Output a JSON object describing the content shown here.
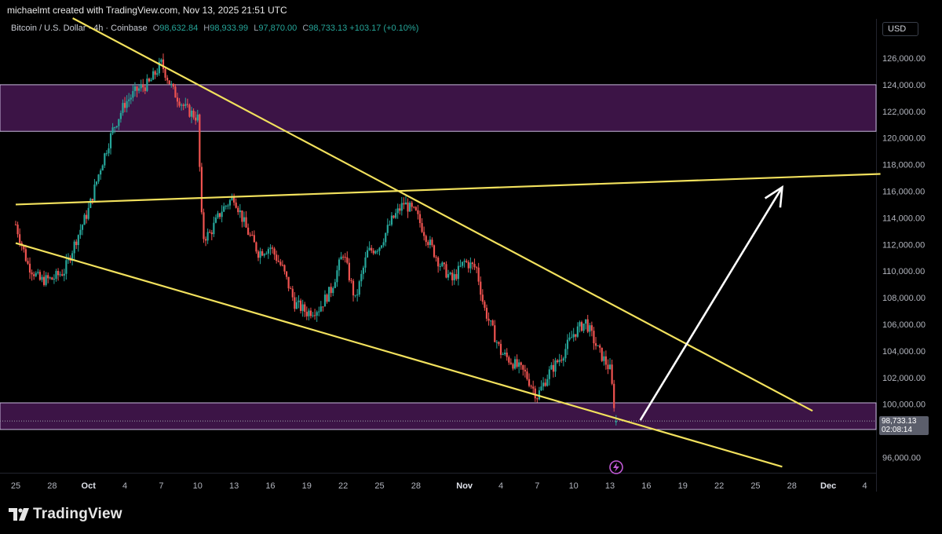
{
  "attribution": "michaelmt created with TradingView.com, Nov 13, 2025 21:51 UTC",
  "legend": {
    "symbol": "Bitcoin / U.S. Dollar · 4h · Coinbase",
    "o_label": "O",
    "o_value": "98,632.84",
    "h_label": "H",
    "h_value": "98,933.99",
    "l_label": "L",
    "l_value": "97,870.00",
    "c_label": "C",
    "c_value": "98,733.13",
    "change": "+103.17 (+0.10%)"
  },
  "currency": "USD",
  "last_price": {
    "value": "98,733.13",
    "countdown": "02:08:14"
  },
  "branding": {
    "logo_text": "TradingView",
    "logo_icon": "tradingview-logo-icon"
  },
  "colors": {
    "background": "#000000",
    "up": "#26a69a",
    "down": "#ef5350",
    "trendline": "#f2e15d",
    "arrow": "#ffffff",
    "zone_fill": "#3c1446",
    "zone_border": "#c8b8dc",
    "label_text": "#b2b5be"
  },
  "chart_data": {
    "type": "candlestick",
    "title": "Bitcoin / U.S. Dollar · 4h · Coinbase",
    "interval": "4h",
    "x_range_days": [
      "2025-09-25",
      "2025-12-05"
    ],
    "ylim": [
      94500,
      127500
    ],
    "y_ticks": [
      {
        "value": 96000,
        "label": "96,000.00"
      },
      {
        "value": 98000,
        "label": "98,000.00"
      },
      {
        "value": 100000,
        "label": "100,000.00"
      },
      {
        "value": 102000,
        "label": "102,000.00"
      },
      {
        "value": 104000,
        "label": "104,000.00"
      },
      {
        "value": 106000,
        "label": "106,000.00"
      },
      {
        "value": 108000,
        "label": "108,000.00"
      },
      {
        "value": 110000,
        "label": "110,000.00"
      },
      {
        "value": 112000,
        "label": "112,000.00"
      },
      {
        "value": 114000,
        "label": "114,000.00"
      },
      {
        "value": 116000,
        "label": "116,000.00"
      },
      {
        "value": 118000,
        "label": "118,000.00"
      },
      {
        "value": 120000,
        "label": "120,000.00"
      },
      {
        "value": 122000,
        "label": "122,000.00"
      },
      {
        "value": 124000,
        "label": "124,000.00"
      },
      {
        "value": 126000,
        "label": "126,000.00"
      }
    ],
    "x_ticks": [
      {
        "day": 0,
        "label": "25",
        "bold": false
      },
      {
        "day": 3,
        "label": "28",
        "bold": false
      },
      {
        "day": 6,
        "label": "Oct",
        "bold": true
      },
      {
        "day": 9,
        "label": "4",
        "bold": false
      },
      {
        "day": 12,
        "label": "7",
        "bold": false
      },
      {
        "day": 15,
        "label": "10",
        "bold": false
      },
      {
        "day": 18,
        "label": "13",
        "bold": false
      },
      {
        "day": 21,
        "label": "16",
        "bold": false
      },
      {
        "day": 24,
        "label": "19",
        "bold": false
      },
      {
        "day": 27,
        "label": "22",
        "bold": false
      },
      {
        "day": 30,
        "label": "25",
        "bold": false
      },
      {
        "day": 33,
        "label": "28",
        "bold": false
      },
      {
        "day": 37,
        "label": "Nov",
        "bold": true
      },
      {
        "day": 40,
        "label": "4",
        "bold": false
      },
      {
        "day": 43,
        "label": "7",
        "bold": false
      },
      {
        "day": 46,
        "label": "10",
        "bold": false
      },
      {
        "day": 49,
        "label": "13",
        "bold": false
      },
      {
        "day": 52,
        "label": "16",
        "bold": false
      },
      {
        "day": 55,
        "label": "19",
        "bold": false
      },
      {
        "day": 58,
        "label": "22",
        "bold": false
      },
      {
        "day": 61,
        "label": "25",
        "bold": false
      },
      {
        "day": 64,
        "label": "28",
        "bold": false
      },
      {
        "day": 67,
        "label": "Dec",
        "bold": true
      },
      {
        "day": 70,
        "label": "4",
        "bold": false
      }
    ],
    "price_path_days": [
      [
        0,
        113500
      ],
      [
        1,
        110500
      ],
      [
        2,
        109300
      ],
      [
        3,
        109400
      ],
      [
        4,
        110000
      ],
      [
        5,
        112400
      ],
      [
        6,
        114600
      ],
      [
        7,
        117800
      ],
      [
        8,
        120600
      ],
      [
        9,
        122600
      ],
      [
        10,
        123600
      ],
      [
        11,
        124100
      ],
      [
        12,
        125600
      ],
      [
        13,
        123500
      ],
      [
        14,
        122200
      ],
      [
        15,
        121500
      ],
      [
        15.4,
        112500
      ],
      [
        16,
        112800
      ],
      [
        17,
        114600
      ],
      [
        18,
        115600
      ],
      [
        19,
        113200
      ],
      [
        20,
        111400
      ],
      [
        21,
        111800
      ],
      [
        22,
        110200
      ],
      [
        23,
        107600
      ],
      [
        24,
        106900
      ],
      [
        25,
        107200
      ],
      [
        26,
        108600
      ],
      [
        27,
        111400
      ],
      [
        28,
        107800
      ],
      [
        29,
        111400
      ],
      [
        30,
        111900
      ],
      [
        31,
        113800
      ],
      [
        32,
        115100
      ],
      [
        33,
        114300
      ],
      [
        34,
        112300
      ],
      [
        35,
        110500
      ],
      [
        36,
        109300
      ],
      [
        37,
        110700
      ],
      [
        38,
        110200
      ],
      [
        38.6,
        107300
      ],
      [
        39,
        106300
      ],
      [
        40,
        103900
      ],
      [
        41,
        103100
      ],
      [
        42,
        102300
      ],
      [
        43,
        100600
      ],
      [
        44,
        102400
      ],
      [
        45,
        103600
      ],
      [
        46,
        105300
      ],
      [
        47,
        106200
      ],
      [
        48,
        104100
      ],
      [
        49,
        102600
      ],
      [
        49.5,
        98733
      ]
    ],
    "last_close": 98733.13,
    "drawings": {
      "zones": [
        {
          "name": "upper-resistance-zone",
          "y_from": 120500,
          "y_to": 124000
        },
        {
          "name": "lower-support-zone",
          "y_from": 98100,
          "y_to": 100100
        }
      ],
      "trendlines": [
        {
          "name": "falling-wedge-upper-line",
          "from": [
            4.7,
            129000
          ],
          "to": [
            65.7,
            99500
          ]
        },
        {
          "name": "falling-wedge-lower-line",
          "from": [
            0,
            112100
          ],
          "to": [
            63.2,
            95300
          ]
        },
        {
          "name": "horizontal-resistance-line",
          "from": [
            0,
            115000
          ],
          "to": [
            71.3,
            117300
          ]
        }
      ],
      "arrow": {
        "name": "projection-arrow",
        "from": [
          51.5,
          98800
        ],
        "to": [
          63.2,
          116300
        ]
      }
    }
  }
}
